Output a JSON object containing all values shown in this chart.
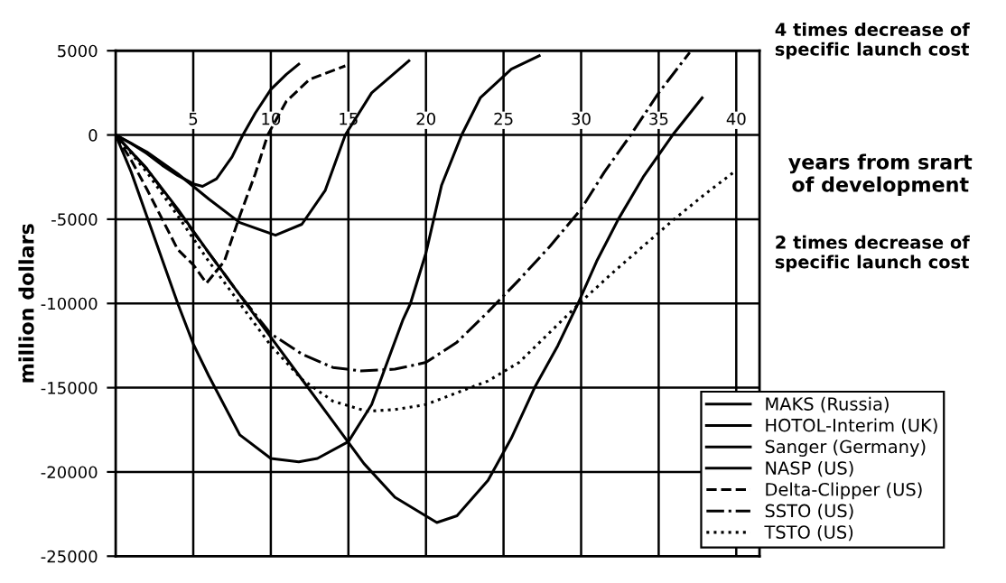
{
  "chart_data": {
    "type": "line",
    "xlabel": "years from srart\nof development",
    "ylabel": "million dollars",
    "xlim": [
      0,
      41.5
    ],
    "ylim": [
      -25000,
      5000
    ],
    "xticks": [
      5,
      10,
      15,
      20,
      25,
      30,
      35,
      40
    ],
    "yticks": [
      -25000,
      -20000,
      -15000,
      -10000,
      -5000,
      0,
      5000
    ],
    "grid": true,
    "legend": "bottom right",
    "annotations": [
      "4 times decrease of\nspecific launch cost",
      "2 times decrease of\nspecific launch cost"
    ],
    "series": [
      {
        "name": "MAKS (Russia)",
        "color": "#000000",
        "line_style": "solid",
        "x": [
          0,
          1,
          2,
          3,
          4,
          5,
          5.6,
          6.5,
          7.5,
          8.2,
          9,
          10,
          11,
          11.8
        ],
        "values": [
          0,
          -500,
          -1100,
          -1800,
          -2400,
          -2900,
          -3050,
          -2600,
          -1300,
          0,
          1300,
          2700,
          3600,
          4200
        ]
      },
      {
        "name": "HOTOL-Interim (UK)",
        "color": "#000000",
        "line_style": "solid",
        "x": [
          0,
          2,
          4,
          6,
          8,
          10.3,
          12,
          13.5,
          14.8,
          16.5,
          18.9
        ],
        "values": [
          0,
          -1000,
          -2300,
          -3800,
          -5200,
          -5950,
          -5300,
          -3300,
          0,
          2500,
          4400
        ]
      },
      {
        "name": "Sanger (Germany)",
        "color": "#000000",
        "line_style": "solid",
        "x": [
          0,
          1,
          2,
          3,
          4,
          5,
          6,
          8,
          10,
          11.8,
          13,
          15,
          16.5,
          17.5,
          18.5,
          19,
          20,
          21,
          22.3,
          23.5,
          25.5,
          27.3
        ],
        "values": [
          0,
          -2200,
          -4800,
          -7400,
          -10000,
          -12400,
          -14300,
          -17800,
          -19200,
          -19400,
          -19200,
          -18200,
          -16000,
          -13500,
          -11000,
          -10000,
          -7000,
          -3000,
          0,
          2200,
          3900,
          4700
        ]
      },
      {
        "name": "NASP (US)",
        "color": "#000000",
        "line_style": "solid",
        "x": [
          0,
          2,
          4,
          6,
          8,
          10,
          12,
          14,
          16,
          18,
          20.7,
          22,
          24,
          25.5,
          27,
          28.5,
          29.8,
          31,
          32.4,
          34,
          35.9,
          37.8
        ],
        "values": [
          0,
          -2000,
          -4400,
          -7000,
          -9500,
          -12000,
          -14500,
          -17000,
          -19500,
          -21500,
          -23000,
          -22600,
          -20500,
          -18000,
          -15000,
          -12500,
          -10000,
          -7500,
          -5000,
          -2500,
          0,
          2200
        ]
      },
      {
        "name": "Delta-Clipper (US)",
        "color": "#000000",
        "line_style": "dashed",
        "x": [
          0,
          1,
          2,
          3,
          4,
          5,
          5.85,
          7,
          8,
          9,
          9.8,
          11,
          12.5,
          14.8
        ],
        "values": [
          0,
          -1500,
          -3200,
          -5000,
          -6800,
          -7700,
          -8800,
          -7500,
          -4800,
          -2300,
          0,
          2000,
          3300,
          4100
        ]
      },
      {
        "name": "SSTO (US)",
        "color": "#000000",
        "line_style": "dashdot",
        "x": [
          0,
          2,
          4,
          6,
          8,
          10,
          12,
          14,
          15.8,
          18,
          20,
          22,
          24,
          26,
          28,
          30,
          31.5,
          33.2,
          35,
          37
        ],
        "values": [
          0,
          -2000,
          -4500,
          -7000,
          -9500,
          -11800,
          -13000,
          -13800,
          -14000,
          -13900,
          -13500,
          -12300,
          -10500,
          -8600,
          -6600,
          -4400,
          -2200,
          0,
          2500,
          4900
        ]
      },
      {
        "name": "TSTO (US)",
        "color": "#000000",
        "line_style": "dotted",
        "x": [
          0,
          2,
          4,
          6,
          8,
          10,
          12,
          14,
          16.2,
          18,
          20,
          22,
          24,
          26,
          28,
          30,
          32,
          34,
          36,
          38,
          40
        ],
        "values": [
          0,
          -2200,
          -4800,
          -7500,
          -10000,
          -12500,
          -14500,
          -15800,
          -16400,
          -16300,
          -16000,
          -15300,
          -14600,
          -13500,
          -11700,
          -9900,
          -8200,
          -6600,
          -5000,
          -3500,
          -2100
        ]
      }
    ]
  }
}
